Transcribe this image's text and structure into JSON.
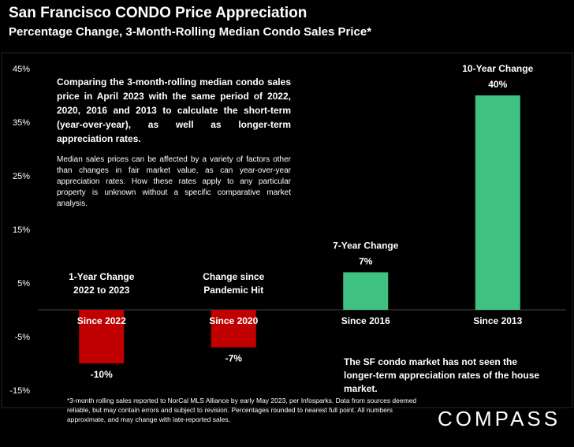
{
  "header": {
    "title": "San Francisco CONDO Price Appreciation",
    "subtitle": "Percentage Change, 3-Month-Rolling Median Condo Sales Price*"
  },
  "chart_data": {
    "type": "bar",
    "categories": [
      "Since 2022",
      "Since 2020",
      "Since 2016",
      "Since 2013"
    ],
    "values": [
      -10,
      -7,
      7,
      40
    ],
    "value_labels": [
      "-10%",
      "-7%",
      "7%",
      "40%"
    ],
    "bar_labels": [
      "1-Year Change\n2022 to 2023",
      "Change since\nPandemic Hit",
      "7-Year Change",
      "10-Year Change"
    ],
    "colors": [
      "#c00000",
      "#c00000",
      "#3fc182",
      "#3fc182"
    ],
    "ylim": [
      -15,
      45
    ],
    "yticks": [
      45,
      35,
      25,
      15,
      5,
      -5,
      -15
    ],
    "ytick_labels": [
      "45%",
      "35%",
      "25%",
      "15%",
      "5%",
      "-5%",
      "-15%"
    ],
    "grid": false
  },
  "notes": {
    "main": "Comparing the 3-month-rolling median condo sales price in April 2023 with the same period of 2022, 2020, 2016 and 2013 to calculate the short-term (year-over-year), as well as longer-term appreciation rates.",
    "sub": "Median sales prices can be affected by a variety of factors other than changes in fair market value, as can year-over-year appreciation rates. How these rates apply to any particular property is unknown without a specific comparative market analysis.",
    "right": "The SF condo market has not seen the longer-term appreciation rates of the house market."
  },
  "footnote": "*3-month rolling sales reported to NorCal MLS Alliance by early May 2023, per Infosparks. Data from sources deemed reliable, but may contain errors and subject to revision. Percentages rounded to nearest full point. All numbers approximate, and may change with late-reported sales.",
  "logo": "COMPASS"
}
